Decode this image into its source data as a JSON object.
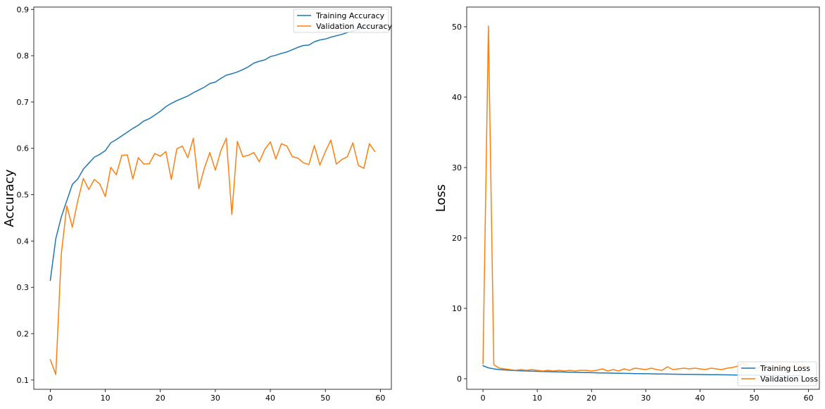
{
  "chart_data": [
    {
      "type": "line",
      "xlabel": "",
      "ylabel": "Accuracy",
      "xlim": [
        -3,
        62
      ],
      "ylim": [
        0.08,
        0.905
      ],
      "xticks": [
        0,
        10,
        20,
        30,
        40,
        50,
        60
      ],
      "yticks": [
        0.1,
        0.2,
        0.3,
        0.4,
        0.5,
        0.6,
        0.7,
        0.8,
        0.9
      ],
      "legend_position": "top-right",
      "grid": false,
      "series": [
        {
          "name": "Training Accuracy",
          "color": "#1f77b4",
          "x": [
            0,
            1,
            2,
            3,
            4,
            5,
            6,
            7,
            8,
            9,
            10,
            11,
            12,
            13,
            14,
            15,
            16,
            17,
            18,
            19,
            20,
            21,
            22,
            23,
            24,
            25,
            26,
            27,
            28,
            29,
            30,
            31,
            32,
            33,
            34,
            35,
            36,
            37,
            38,
            39,
            40,
            41,
            42,
            43,
            44,
            45,
            46,
            47,
            48,
            49,
            50,
            51,
            52,
            53,
            54,
            55,
            56,
            57,
            58,
            59
          ],
          "values": [
            0.315,
            0.405,
            0.452,
            0.487,
            0.522,
            0.534,
            0.555,
            0.568,
            0.581,
            0.587,
            0.595,
            0.612,
            0.619,
            0.627,
            0.635,
            0.643,
            0.65,
            0.659,
            0.664,
            0.672,
            0.68,
            0.69,
            0.697,
            0.703,
            0.708,
            0.713,
            0.72,
            0.726,
            0.732,
            0.74,
            0.743,
            0.751,
            0.758,
            0.761,
            0.765,
            0.77,
            0.776,
            0.784,
            0.788,
            0.791,
            0.798,
            0.801,
            0.805,
            0.808,
            0.813,
            0.818,
            0.822,
            0.823,
            0.83,
            0.834,
            0.836,
            0.84,
            0.843,
            0.846,
            0.85,
            0.853,
            0.857,
            0.86,
            0.862,
            0.865
          ]
        },
        {
          "name": "Validation Accuracy",
          "color": "#ff7f0e",
          "x": [
            0,
            1,
            2,
            3,
            4,
            5,
            6,
            7,
            8,
            9,
            10,
            11,
            12,
            13,
            14,
            15,
            16,
            17,
            18,
            19,
            20,
            21,
            22,
            23,
            24,
            25,
            26,
            27,
            28,
            29,
            30,
            31,
            32,
            33,
            34,
            35,
            36,
            37,
            38,
            39,
            40,
            41,
            42,
            43,
            44,
            45,
            46,
            47,
            48,
            49,
            50,
            51,
            52,
            53,
            54,
            55,
            56,
            57,
            58,
            59
          ],
          "values": [
            0.144,
            0.112,
            0.372,
            0.476,
            0.43,
            0.487,
            0.535,
            0.511,
            0.533,
            0.523,
            0.496,
            0.559,
            0.543,
            0.585,
            0.586,
            0.534,
            0.58,
            0.566,
            0.567,
            0.589,
            0.583,
            0.593,
            0.533,
            0.599,
            0.605,
            0.58,
            0.622,
            0.513,
            0.557,
            0.591,
            0.553,
            0.595,
            0.622,
            0.457,
            0.615,
            0.582,
            0.585,
            0.591,
            0.571,
            0.598,
            0.614,
            0.577,
            0.61,
            0.605,
            0.582,
            0.579,
            0.569,
            0.565,
            0.606,
            0.564,
            0.593,
            0.618,
            0.566,
            0.576,
            0.582,
            0.612,
            0.563,
            0.557,
            0.61,
            0.593
          ]
        }
      ]
    },
    {
      "type": "line",
      "xlabel": "",
      "ylabel": "Loss",
      "xlim": [
        -3,
        62
      ],
      "ylim": [
        -1.5,
        52.8
      ],
      "xticks": [
        0,
        10,
        20,
        30,
        40,
        50,
        60
      ],
      "yticks": [
        0,
        10,
        20,
        30,
        40,
        50
      ],
      "legend_position": "bottom-right",
      "grid": false,
      "series": [
        {
          "name": "Training Loss",
          "color": "#1f77b4",
          "x": [
            0,
            1,
            2,
            3,
            4,
            5,
            6,
            7,
            8,
            9,
            10,
            11,
            12,
            13,
            14,
            15,
            16,
            17,
            18,
            19,
            20,
            21,
            22,
            23,
            24,
            25,
            26,
            27,
            28,
            29,
            30,
            31,
            32,
            33,
            34,
            35,
            36,
            37,
            38,
            39,
            40,
            41,
            42,
            43,
            44,
            45,
            46,
            47,
            48,
            49,
            50,
            51,
            52,
            53,
            54,
            55,
            56,
            57,
            58,
            59
          ],
          "values": [
            1.85,
            1.55,
            1.4,
            1.3,
            1.25,
            1.2,
            1.15,
            1.12,
            1.1,
            1.07,
            1.05,
            1.03,
            1.01,
            0.99,
            0.97,
            0.95,
            0.93,
            0.91,
            0.89,
            0.87,
            0.86,
            0.84,
            0.82,
            0.81,
            0.79,
            0.78,
            0.76,
            0.75,
            0.73,
            0.72,
            0.71,
            0.7,
            0.68,
            0.67,
            0.66,
            0.65,
            0.64,
            0.63,
            0.62,
            0.61,
            0.6,
            0.59,
            0.58,
            0.57,
            0.56,
            0.55,
            0.54,
            0.53,
            0.52,
            0.51,
            0.5,
            0.49,
            0.48,
            0.47,
            0.46,
            0.45,
            0.44,
            0.43,
            0.42,
            0.41
          ]
        },
        {
          "name": "Validation Loss",
          "color": "#ff7f0e",
          "x": [
            0,
            1,
            2,
            3,
            4,
            5,
            6,
            7,
            8,
            9,
            10,
            11,
            12,
            13,
            14,
            15,
            16,
            17,
            18,
            19,
            20,
            21,
            22,
            23,
            24,
            25,
            26,
            27,
            28,
            29,
            30,
            31,
            32,
            33,
            34,
            35,
            36,
            37,
            38,
            39,
            40,
            41,
            42,
            43,
            44,
            45,
            46,
            47,
            48,
            49,
            50,
            51,
            52,
            53,
            54,
            55,
            56,
            57,
            58,
            59
          ],
          "values": [
            2.1,
            50.1,
            2.0,
            1.5,
            1.4,
            1.3,
            1.2,
            1.3,
            1.2,
            1.3,
            1.2,
            1.1,
            1.2,
            1.1,
            1.2,
            1.1,
            1.2,
            1.1,
            1.2,
            1.2,
            1.1,
            1.2,
            1.4,
            1.1,
            1.3,
            1.1,
            1.4,
            1.2,
            1.5,
            1.4,
            1.3,
            1.5,
            1.3,
            1.2,
            1.7,
            1.3,
            1.4,
            1.5,
            1.4,
            1.5,
            1.4,
            1.3,
            1.5,
            1.4,
            1.3,
            1.5,
            1.6,
            1.8,
            2.2,
            1.6,
            1.5,
            1.6,
            1.7,
            1.6,
            1.6,
            1.8,
            1.7,
            1.7,
            1.6,
            1.9
          ]
        }
      ]
    }
  ]
}
